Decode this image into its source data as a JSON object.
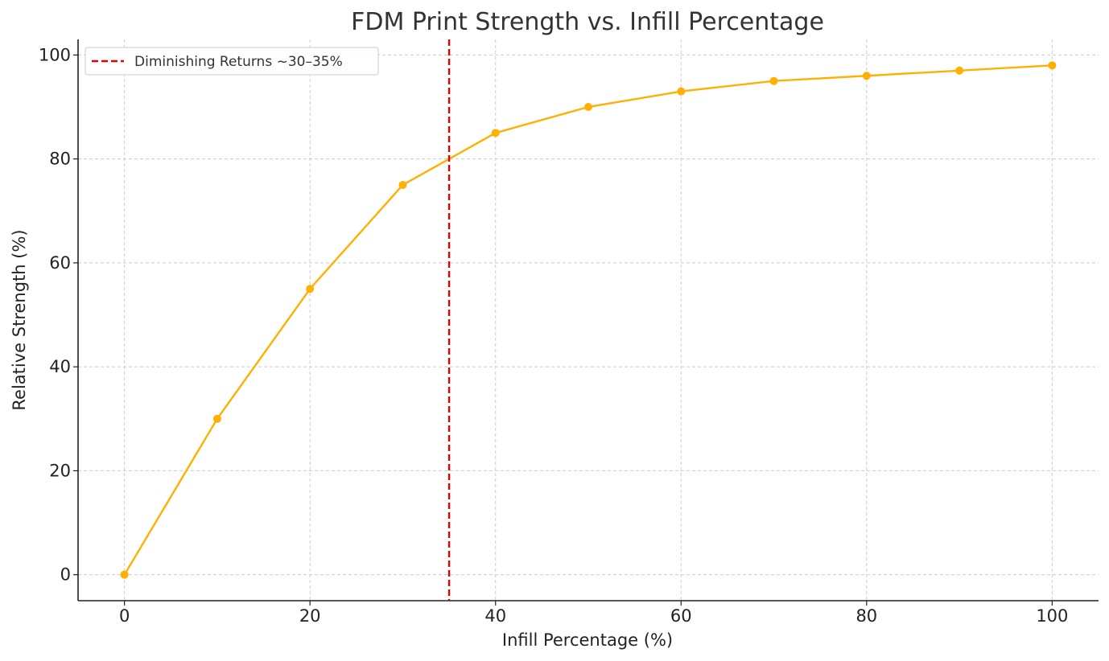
{
  "chart_data": {
    "type": "line",
    "title": "FDM Print Strength vs. Infill Percentage",
    "xlabel": "Infill Percentage (%)",
    "ylabel": "Relative Strength (%)",
    "xlim": [
      -5,
      105
    ],
    "ylim": [
      -5,
      103
    ],
    "xticks": [
      0,
      20,
      40,
      60,
      80,
      100
    ],
    "yticks": [
      0,
      20,
      40,
      60,
      80,
      100
    ],
    "grid": true,
    "legend_position": "top-left",
    "series": [
      {
        "x": [
          0,
          10,
          20,
          30,
          40,
          50,
          60,
          70,
          80,
          90,
          100
        ],
        "y": [
          0,
          30,
          55,
          75,
          85,
          90,
          93,
          95,
          96,
          97,
          98
        ],
        "color": "#FFB000",
        "marker": "circle"
      }
    ],
    "vlines": [
      {
        "x": 35,
        "name": "Diminishing Returns ~30–35%",
        "color": "#E60000",
        "style": "dashed"
      }
    ]
  }
}
